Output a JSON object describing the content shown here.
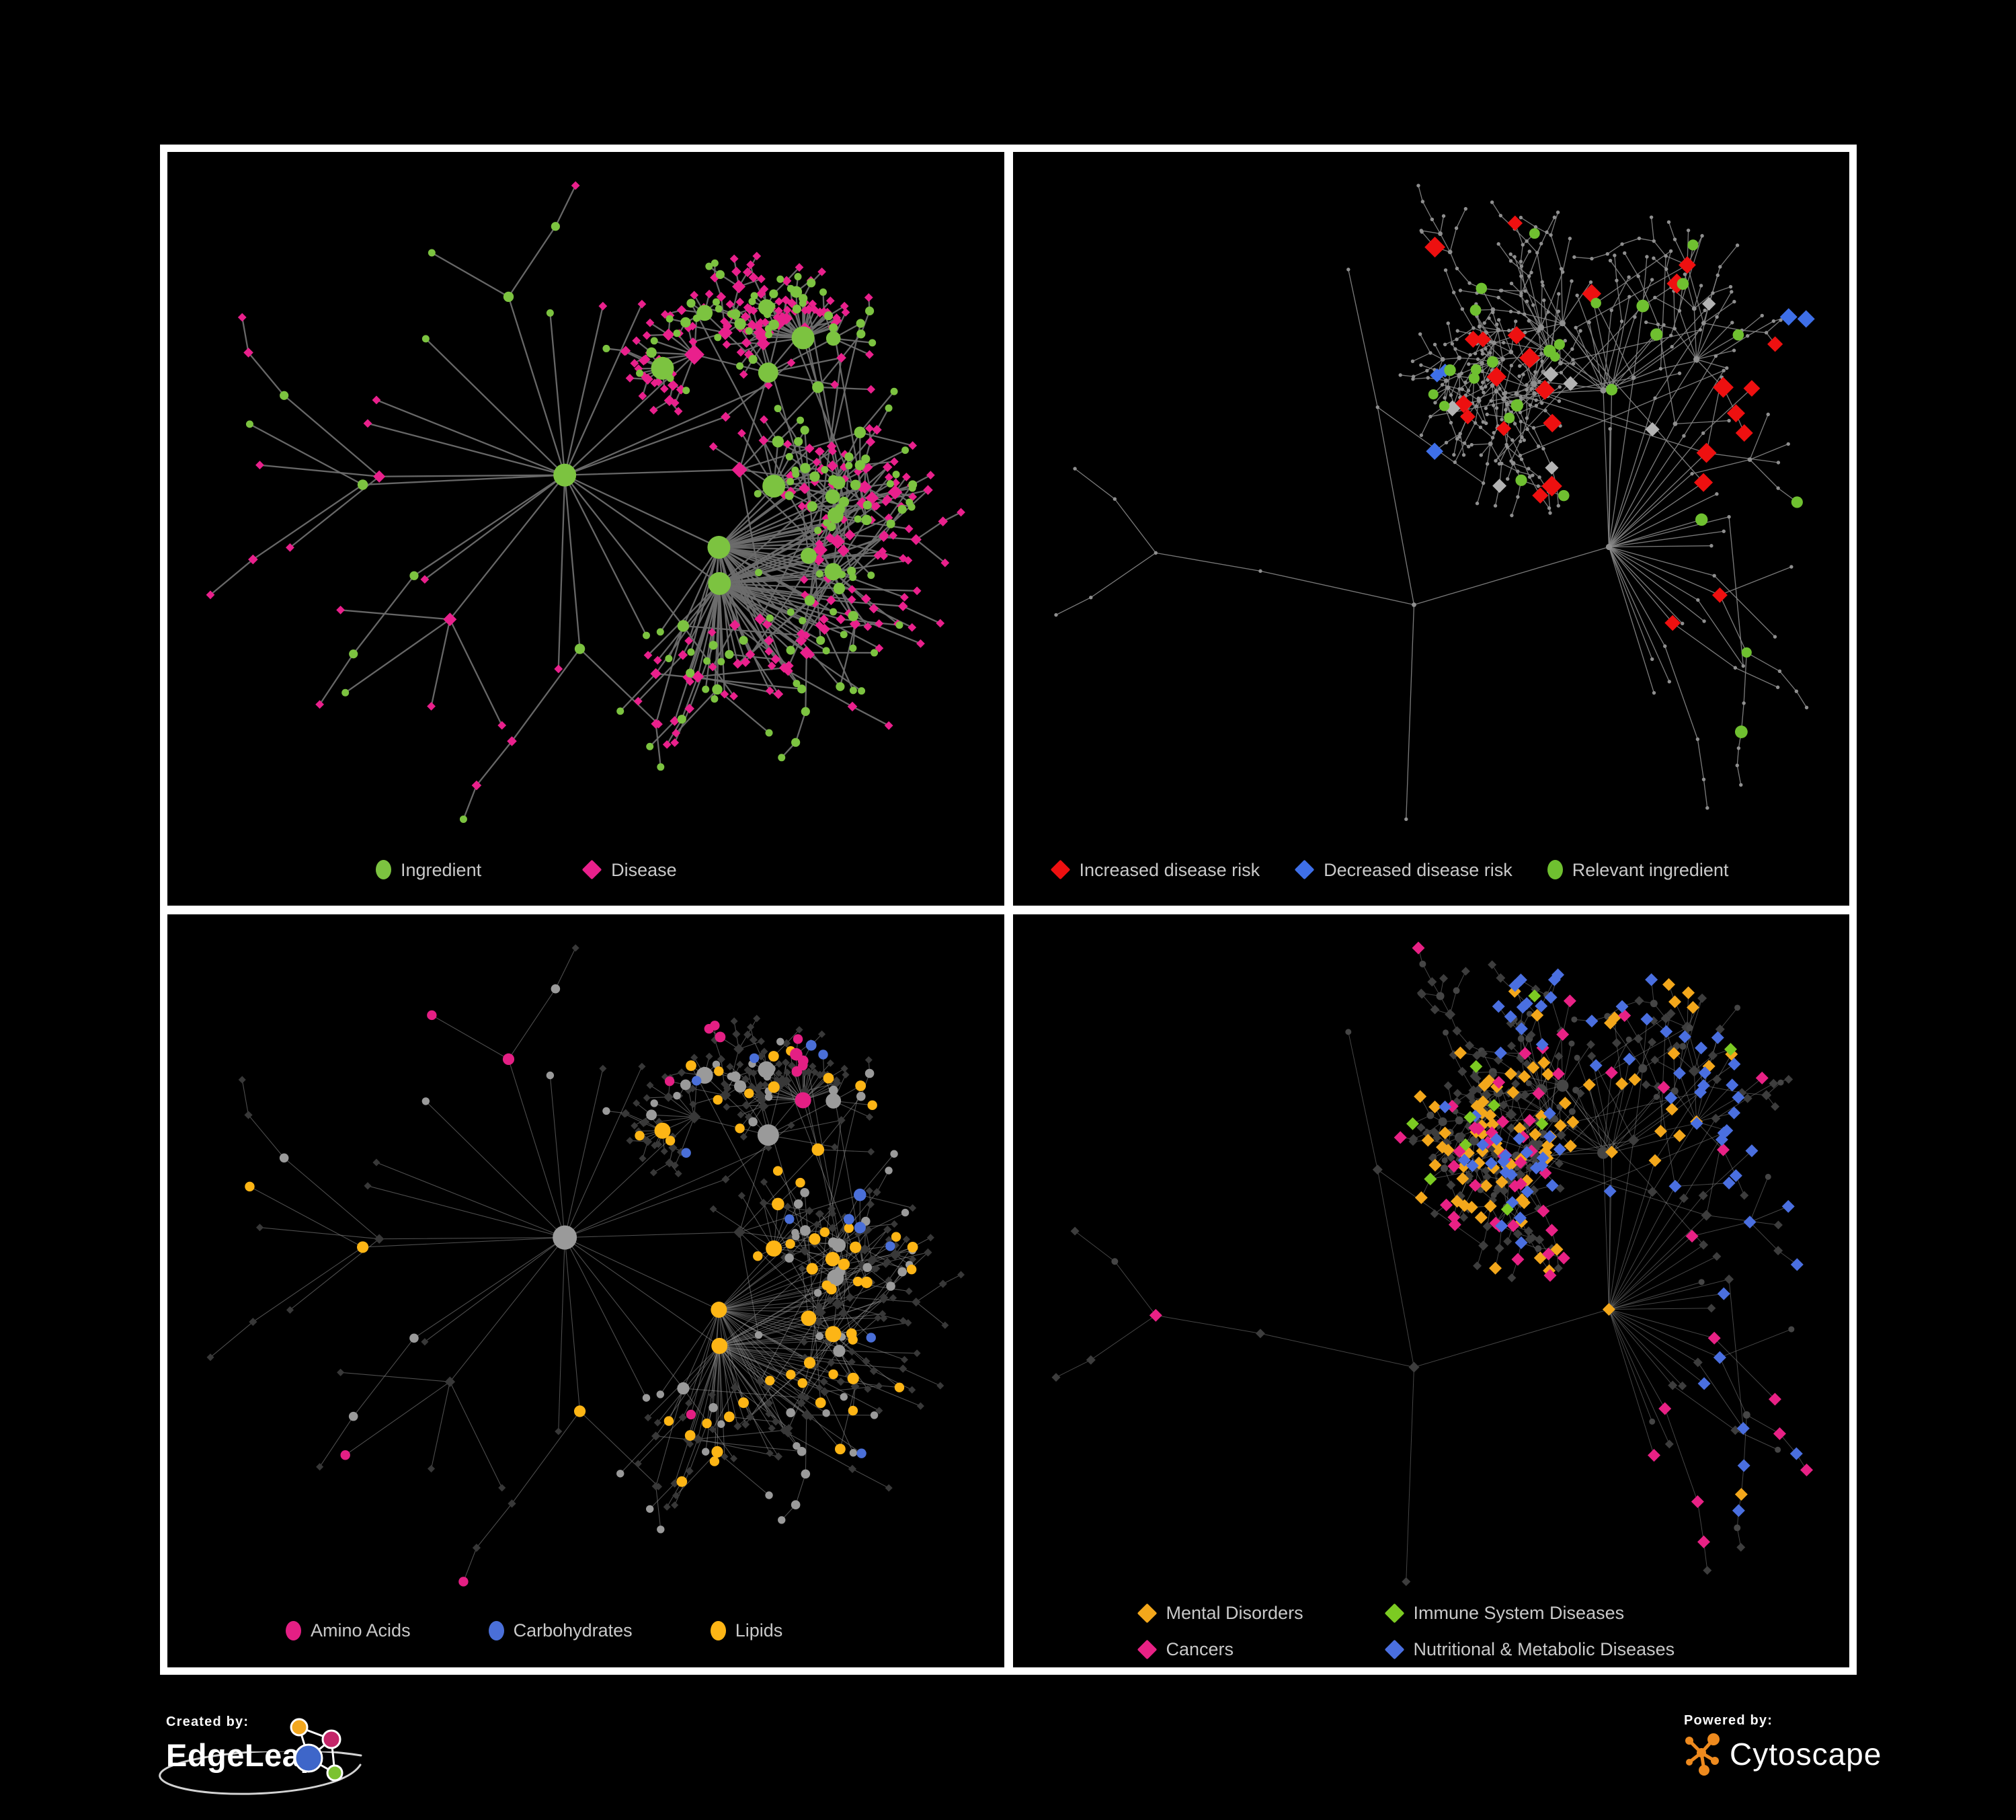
{
  "page": {
    "background": "#000000",
    "frame_color": "#ffffff"
  },
  "panels": [
    {
      "id": "ingredient-disease",
      "legend": [
        {
          "label": "Ingredient",
          "shape": "circle",
          "color": "#7cc340"
        },
        {
          "label": "Disease",
          "shape": "diamond",
          "color": "#e9208c"
        }
      ]
    },
    {
      "id": "disease-risk",
      "legend": [
        {
          "label": "Increased disease risk",
          "shape": "diamond",
          "color": "#ee1010"
        },
        {
          "label": "Decreased disease risk",
          "shape": "diamond",
          "color": "#3e6fe8"
        },
        {
          "label": "Relevant ingredient",
          "shape": "circle",
          "color": "#6fc030"
        }
      ]
    },
    {
      "id": "nutrient-classes",
      "legend": [
        {
          "label": "Amino Acids",
          "shape": "circle",
          "color": "#e41f84"
        },
        {
          "label": "Carbohydrates",
          "shape": "circle",
          "color": "#4a6fd8"
        },
        {
          "label": "Lipids",
          "shape": "circle",
          "color": "#fdb515"
        }
      ]
    },
    {
      "id": "disease-classes",
      "legend": [
        {
          "label": "Mental Disorders",
          "shape": "diamond",
          "color": "#f3a71b"
        },
        {
          "label": "Immune System Diseases",
          "shape": "diamond",
          "color": "#7ccb22"
        },
        {
          "label": "Cancers",
          "shape": "diamond",
          "color": "#e82185"
        },
        {
          "label": "Nutritional & Metabolic Diseases",
          "shape": "diamond",
          "color": "#4a6fe0"
        }
      ]
    }
  ],
  "footer": {
    "created_by": "Created by:",
    "edgeleap": "EdgeLeap",
    "powered_by": "Powered by:",
    "cytoscape": "Cytoscape",
    "edgeleap_logo_colors": {
      "orange": "#f2a71f",
      "magenta": "#c42569",
      "blue": "#3e66c9",
      "green": "#7cc230"
    },
    "cytoscape_logo_color": "#ee8a1e"
  },
  "network_specs": {
    "left_layout": {
      "seed": 20240,
      "nodes": 460,
      "chain": 0.16,
      "expo": 1.55,
      "r0": 295,
      "decay": 0.56,
      "extra": 34,
      "extra_dist": 420
    },
    "right_layout": {
      "seed": 90177,
      "nodes": 470,
      "chain": 0.3,
      "expo": 1.3,
      "r0": 300,
      "decay": 0.6,
      "extra": 14,
      "extra_dist": 380
    },
    "p2_seed": 4242,
    "p3_seed": 1717,
    "p4_seed": 6060,
    "styles": {
      "p1": {
        "edge": "#6d6d6d",
        "edge_w": 2.3,
        "edge_op": 0.95,
        "circle": "#7cc340",
        "diamond": "#e9208c"
      },
      "p2": {
        "edge": "#858585",
        "edge_w": 1.35,
        "edge_op": 0.9,
        "dot": "#8f8f8f",
        "red": "#ee1010",
        "blue": "#3e6fe8",
        "silver": "#b3b3b3",
        "green": "#6fc030",
        "red_count": 26,
        "blue_count": 3,
        "silver_count": 7,
        "green_count": 27
      },
      "p3": {
        "edge": "#9a9a9a",
        "edge_w": 1.1,
        "edge_op": 0.5,
        "circle": "#9a9a9a",
        "dark": "#383838",
        "orange": "#fdb515",
        "pink": "#e41f84",
        "blue": "#4a6fd8",
        "orange_count": 62,
        "pink_count": 15,
        "blue_count": 12
      },
      "p4": {
        "edge": "#9a9a9a",
        "edge_w": 1.0,
        "edge_op": 0.45,
        "dark": "#3d3d3d",
        "dark_dot": "#454545",
        "orange": "#f3a71b",
        "pink": "#e82185",
        "blue": "#4a6fe0",
        "green": "#7ccb22",
        "orange_count": 88,
        "pink_count": 55,
        "blue_count": 76,
        "green_count": 10
      }
    }
  }
}
